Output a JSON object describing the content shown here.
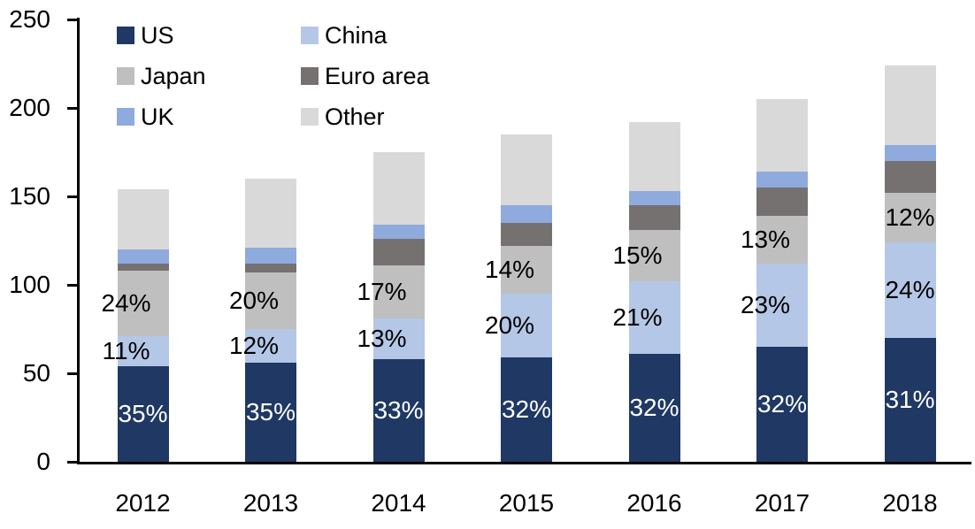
{
  "background": "#FFFFFF",
  "axis_color": "#000000",
  "chart_data": {
    "type": "bar",
    "stacked": true,
    "title": "",
    "xlabel": "",
    "ylabel": "",
    "grid": false,
    "legend_position": "top-left",
    "legend_columns": 2,
    "ylim": [
      0,
      250
    ],
    "y_ticks": [
      0,
      50,
      100,
      150,
      200,
      250
    ],
    "categories": [
      "2012",
      "2013",
      "2014",
      "2015",
      "2016",
      "2017",
      "2018"
    ],
    "series": [
      {
        "name": "US",
        "color": "#1F3864",
        "values": [
          54,
          56,
          58,
          59,
          61,
          65,
          70
        ],
        "labels": [
          "35%",
          "35%",
          "33%",
          "32%",
          "32%",
          "32%",
          "31%"
        ],
        "label_color": "#FFFFFF"
      },
      {
        "name": "China",
        "color": "#B4C7E7",
        "values": [
          17,
          19,
          23,
          36,
          41,
          47,
          54
        ],
        "labels": [
          "11%",
          "12%",
          "13%",
          "20%",
          "21%",
          "23%",
          "24%"
        ],
        "label_color": "#000000"
      },
      {
        "name": "Japan",
        "color": "#BFBFBF",
        "values": [
          37,
          32,
          30,
          27,
          29,
          27,
          28
        ],
        "labels": [
          "24%",
          "20%",
          "17%",
          "14%",
          "15%",
          "13%",
          "12%"
        ],
        "label_color": "#000000"
      },
      {
        "name": "Euro area",
        "color": "#767171",
        "values": [
          4,
          5,
          15,
          13,
          14,
          16,
          18
        ],
        "labels": null,
        "label_color": null
      },
      {
        "name": "UK",
        "color": "#8FAADC",
        "values": [
          8,
          9,
          8,
          10,
          8,
          9,
          9
        ],
        "labels": null,
        "label_color": null
      },
      {
        "name": "Other",
        "color": "#D9D9D9",
        "values": [
          34,
          39,
          41,
          40,
          39,
          41,
          45
        ],
        "labels": null,
        "label_color": null
      }
    ],
    "totals": [
      154,
      160,
      175,
      185,
      192,
      205,
      224
    ]
  }
}
